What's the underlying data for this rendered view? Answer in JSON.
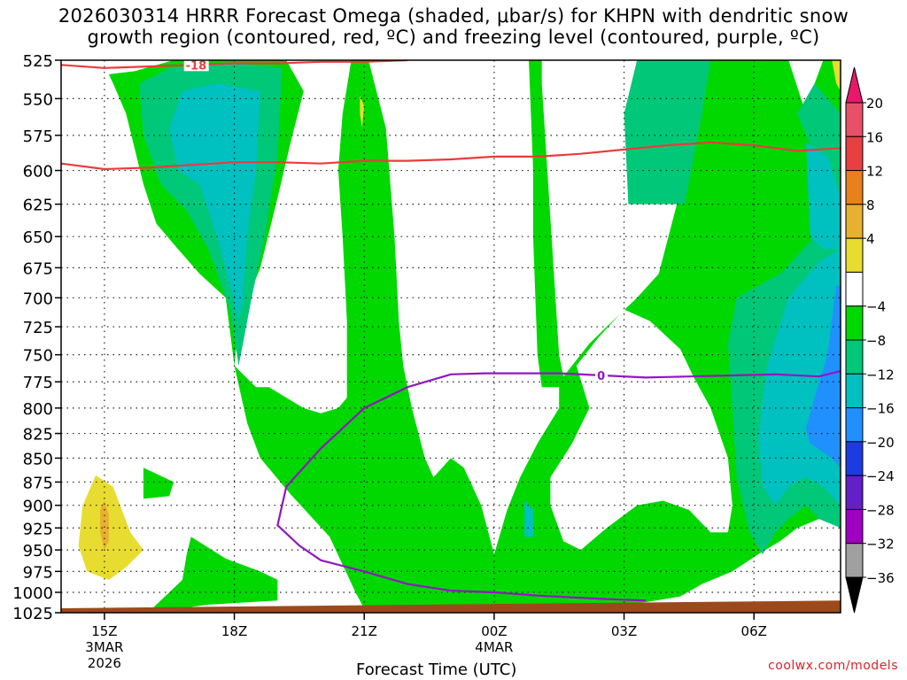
{
  "title": {
    "line1": "2026030314 HRRR Forecast Omega (shaded, μbar/s) for KHPN with dendritic snow",
    "line2": "growth region (contoured, red, ºC) and freezing level (contoured, purple, ºC)"
  },
  "credit": "coolwx.com/models",
  "chart_data": {
    "type": "area",
    "title": "2026030314 HRRR Forecast Omega (shaded, μbar/s) for KHPN with dendritic snow growth region (contoured, red, ºC) and freezing level (contoured, purple, ºC)",
    "xlabel": "Forecast Time (UTC)",
    "ylabel": "",
    "x_ticks": [
      {
        "hour": 0,
        "label": "15Z",
        "sub1": "3MAR",
        "sub2": "2026"
      },
      {
        "hour": 3,
        "label": "18Z",
        "sub1": "",
        "sub2": ""
      },
      {
        "hour": 6,
        "label": "21Z",
        "sub1": "",
        "sub2": ""
      },
      {
        "hour": 9,
        "label": "00Z",
        "sub1": "4MAR",
        "sub2": ""
      },
      {
        "hour": 12,
        "label": "03Z",
        "sub1": "",
        "sub2": ""
      },
      {
        "hour": 15,
        "label": "06Z",
        "sub1": "",
        "sub2": ""
      }
    ],
    "xlim": [
      -1,
      17
    ],
    "y_ticks": [
      525,
      550,
      575,
      600,
      625,
      650,
      675,
      700,
      725,
      750,
      775,
      800,
      825,
      850,
      875,
      900,
      925,
      950,
      975,
      1000,
      1025
    ],
    "ylim": [
      525,
      1025
    ],
    "y_scale": "log-pressure",
    "grid": true,
    "colorbar": {
      "labels": [
        "20",
        "16",
        "12",
        "8",
        "4",
        "−4",
        "−8",
        "−12",
        "−16",
        "−20",
        "−24",
        "−28",
        "−32",
        "−36"
      ],
      "colors": [
        "#e8506a",
        "#e84040",
        "#e8801c",
        "#e8b030",
        "#e8dc30",
        "#ffffff",
        "#00d800",
        "#00c878",
        "#00c0c0",
        "#2090ff",
        "#1c3ce0",
        "#6420c8",
        "#a000c0",
        "#a0a0a0",
        "#000000"
      ],
      "top_arrow_color": "#e8186c",
      "bottom_arrow_color": "#000000"
    },
    "series": [
      {
        "name": "Dendritic growth region -18°C (upper contour)",
        "color": "#ea3c3c",
        "label": "-18",
        "x": [
          -1,
          0,
          1,
          2,
          3,
          4,
          5,
          6,
          7
        ],
        "y": [
          528,
          530,
          529,
          528,
          527,
          527,
          526,
          526,
          525
        ]
      },
      {
        "name": "Dendritic growth region -12°C (lower contour)",
        "color": "#ea3c3c",
        "label": "",
        "x": [
          -1,
          0,
          1,
          2,
          3,
          4,
          5,
          6,
          7,
          8,
          9,
          10,
          11,
          12,
          13,
          14,
          15,
          16,
          17
        ],
        "y": [
          595,
          599,
          598,
          596,
          594,
          594,
          595,
          593,
          593,
          592,
          590,
          590,
          588,
          585,
          582,
          580,
          582,
          586,
          584
        ]
      },
      {
        "name": "Freezing level 0°C",
        "color": "#9018c0",
        "label": "0",
        "x": [
          12.5,
          11.5,
          10,
          9,
          8,
          7,
          6,
          5,
          4.5,
          4.0,
          4.2,
          5.0,
          6.0,
          7.0,
          8.0,
          8.8,
          9.5,
          10.5,
          11.5,
          12.5,
          13.5,
          14.5,
          15.5,
          16.5,
          17
        ],
        "y": [
          1010,
          1008,
          1004,
          1000,
          998,
          990,
          975,
          962,
          945,
          922,
          880,
          840,
          800,
          780,
          768,
          767,
          767,
          767,
          769,
          771,
          770,
          769,
          768,
          770,
          765
        ]
      }
    ],
    "omega_shaded_regions": [
      {
        "level": "-4 to -8",
        "color": "#00d800"
      },
      {
        "level": "-8 to -12",
        "color": "#00c878"
      },
      {
        "level": "-12 to -16",
        "color": "#00c0c0"
      },
      {
        "level": "-16 to -20",
        "color": "#2090ff"
      },
      {
        "level": "4 to 8",
        "color": "#e8dc30"
      },
      {
        "level": "8 to 12",
        "color": "#e8b030"
      }
    ],
    "terrain_color": "#9c4a1c"
  }
}
